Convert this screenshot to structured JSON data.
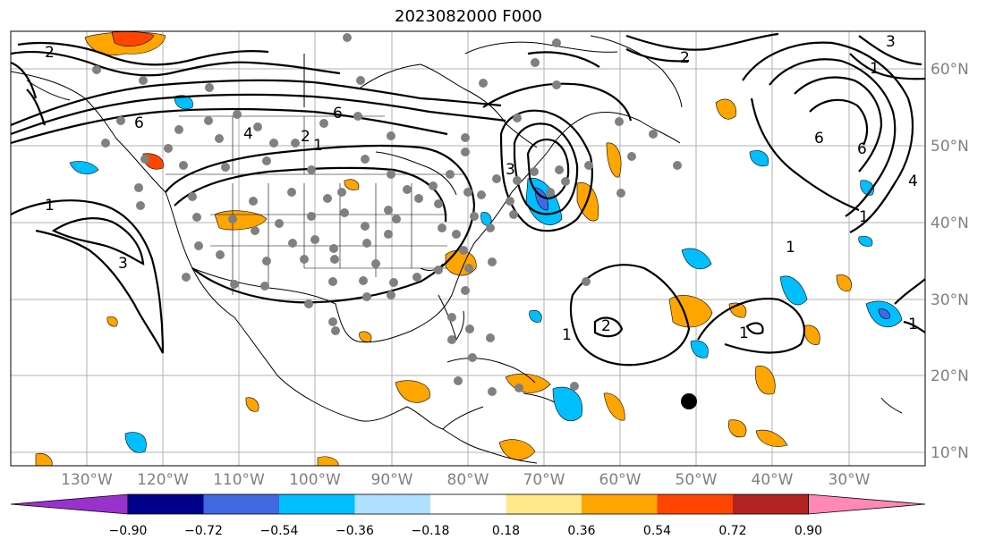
{
  "title": "2023082000 F000",
  "map": {
    "lon_labels": [
      "130°W",
      "120°W",
      "110°W",
      "100°W",
      "90°W",
      "80°W",
      "70°W",
      "60°W",
      "50°W",
      "40°W",
      "30°W"
    ],
    "lat_labels": [
      "60°N",
      "50°N",
      "40°N",
      "30°N",
      "20°N",
      "10°N"
    ],
    "contour_labels": [
      "2",
      "2",
      "3",
      "6",
      "6",
      "4",
      "2",
      "1",
      "1",
      "1",
      "3",
      "1",
      "2",
      "1",
      "1",
      "6",
      "6",
      "4",
      "1",
      "1",
      "3"
    ],
    "storm_marker": {
      "lon": -51,
      "lat": 16.5
    },
    "colors": {
      "land_lines": "#000000",
      "grid": "#b0b0b0",
      "station_dots": "#808080",
      "positive_low": "#ffa500",
      "positive_high": "#ff4500",
      "negative_low": "#00bfff",
      "negative_high": "#4169e1"
    }
  },
  "colorbar": {
    "tick_labels": [
      "−0.90",
      "−0.72",
      "−0.54",
      "−0.36",
      "−0.18",
      "0.18",
      "0.36",
      "0.54",
      "0.72",
      "0.90"
    ],
    "colors": [
      "#9932cc",
      "#00008b",
      "#4169e1",
      "#00bfff",
      "#b0e0ff",
      "#ffffff",
      "#ffe98a",
      "#ffa500",
      "#ff4500",
      "#b22222",
      "#ff89b4"
    ]
  }
}
